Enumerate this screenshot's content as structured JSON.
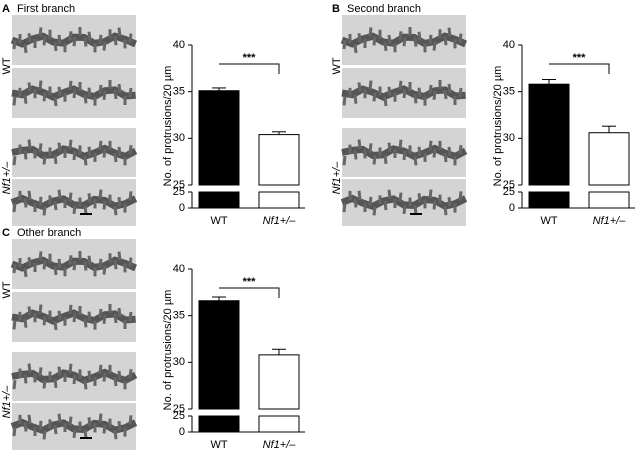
{
  "chart_data": [
    {
      "type": "bar",
      "panel": "A",
      "title": "First branch",
      "ylabel": "No. of protrusions/20 µm",
      "categories": [
        "WT",
        "Nf1+/–"
      ],
      "values": [
        35.1,
        30.4
      ],
      "errors": [
        0.3,
        0.3
      ],
      "colors": [
        "#000000",
        "#ffffff"
      ],
      "ylim": [
        25,
        40
      ],
      "yticks": [
        25,
        30,
        35,
        40
      ],
      "lower_ylim": [
        0,
        25
      ],
      "lower_yticks": [
        0,
        25
      ],
      "significance": "***",
      "image_labels": [
        "WT",
        "Nf1+/–"
      ]
    },
    {
      "type": "bar",
      "panel": "B",
      "title": "Second branch",
      "ylabel": "No. of protrusions/20 µm",
      "categories": [
        "WT",
        "Nf1+/–"
      ],
      "values": [
        35.8,
        30.6
      ],
      "errors": [
        0.5,
        0.7
      ],
      "colors": [
        "#000000",
        "#ffffff"
      ],
      "ylim": [
        25,
        40
      ],
      "yticks": [
        25,
        30,
        35,
        40
      ],
      "lower_ylim": [
        0,
        25
      ],
      "lower_yticks": [
        0,
        25
      ],
      "significance": "***",
      "image_labels": [
        "WT",
        "Nf1+/–"
      ]
    },
    {
      "type": "bar",
      "panel": "C",
      "title": "Other branch",
      "ylabel": "No. of protrusions/20 µm",
      "categories": [
        "WT",
        "Nf1+/–"
      ],
      "values": [
        36.6,
        30.8
      ],
      "errors": [
        0.4,
        0.6
      ],
      "colors": [
        "#000000",
        "#ffffff"
      ],
      "ylim": [
        25,
        40
      ],
      "yticks": [
        25,
        30,
        35,
        40
      ],
      "lower_ylim": [
        0,
        25
      ],
      "lower_yticks": [
        0,
        25
      ],
      "significance": "***",
      "image_labels": [
        "WT",
        "Nf1+/–"
      ]
    }
  ]
}
